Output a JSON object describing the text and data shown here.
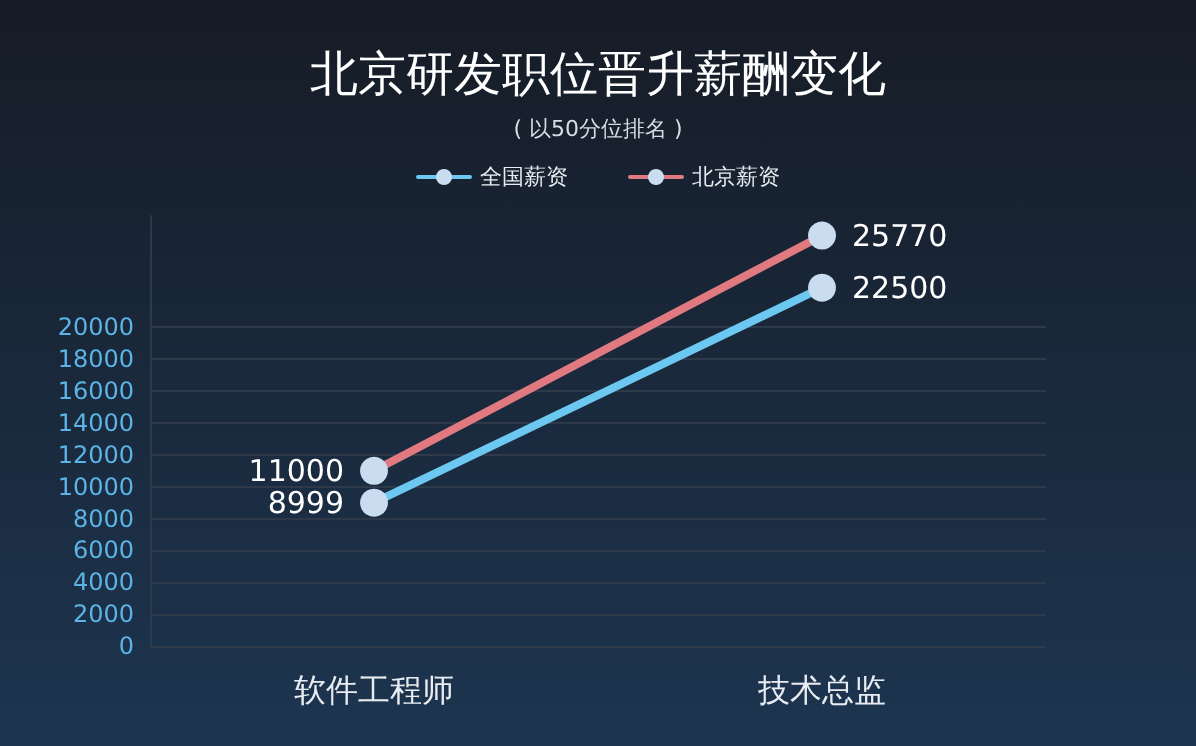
{
  "chart_data": {
    "type": "line",
    "title": "北京研发职位晋升薪酬变化",
    "subtitle": "( 以50分位排名 )",
    "categories": [
      "软件工程师",
      "技术总监"
    ],
    "series": [
      {
        "name": "全国薪资",
        "color": "#6cc8f0",
        "values": [
          8999,
          22500
        ]
      },
      {
        "name": "北京薪资",
        "color": "#e07a80",
        "values": [
          11000,
          25770
        ]
      }
    ],
    "ylim": [
      0,
      27000
    ],
    "yticks": [
      0,
      2000,
      4000,
      6000,
      8000,
      10000,
      12000,
      14000,
      16000,
      18000,
      20000
    ],
    "grid": "y",
    "legend": "top",
    "marker": "circle",
    "line_style": "solid",
    "data_labels": true
  }
}
